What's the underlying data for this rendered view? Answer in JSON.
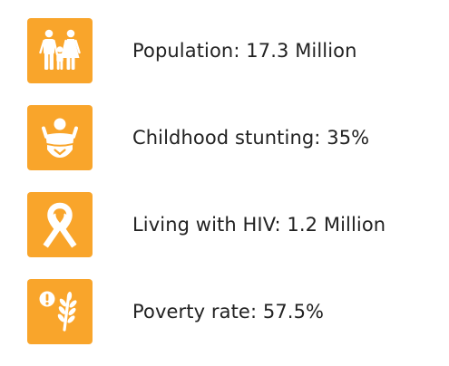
{
  "colors": {
    "icon_background": "#F9A52B",
    "icon_foreground": "#FFFFFF",
    "text": "#222222"
  },
  "stats": [
    {
      "icon": "family-icon",
      "text": "Population: 17.3 Million"
    },
    {
      "icon": "baby-icon",
      "text": "Childhood stunting: 35%"
    },
    {
      "icon": "awareness-ribbon-icon",
      "text": "Living with HIV: 1.2 Million"
    },
    {
      "icon": "wheat-alert-icon",
      "text": "Poverty rate: 57.5%"
    }
  ]
}
